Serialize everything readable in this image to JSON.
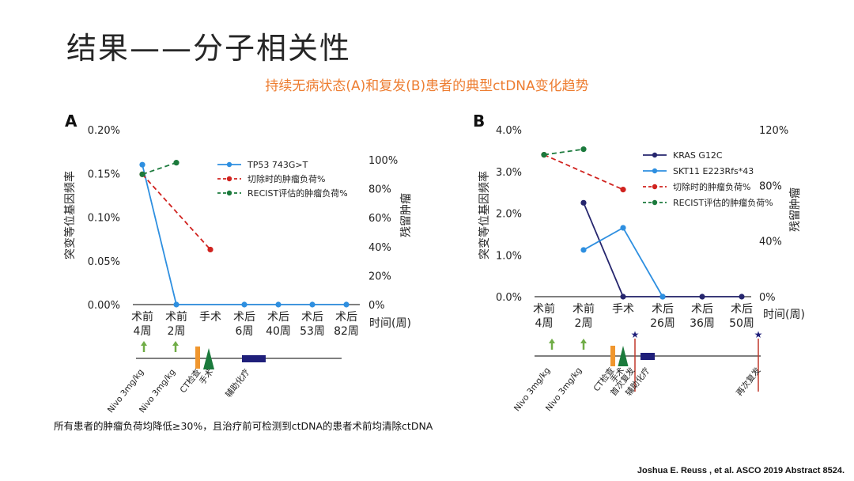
{
  "slide": {
    "title": "结果——分子相关性",
    "subtitle": "持续无病状态(A)和复发(B)患者的典型ctDNA变化趋势",
    "footnote": "所有患者的肿瘤负荷均降低≥30%，且治疗前可检测到ctDNA的患者术前均清除ctDNA",
    "citation": "Joshua E. Reuss , et al.  ASCO 2019 Abstract 8524."
  },
  "colors": {
    "tp53": "#2e8fe0",
    "kras": "#26266e",
    "stk11": "#2e8fe0",
    "resection": "#d0231f",
    "recist": "#1b7a3c",
    "nivo_arrow": "#70ad47",
    "ct_bar": "#f0962e",
    "surgery_tri": "#1b7a3c",
    "adjuvant_bar": "#1f1f7a",
    "relapse_line": "#c0392b",
    "star": "#1f1f7a"
  },
  "chart_data": [
    {
      "panel": "A",
      "type": "line",
      "ylabel": "突变等位基因频率",
      "y2label": "残留肿瘤",
      "xlabel": "时间(周)",
      "ylim": [
        0,
        0.2
      ],
      "yticks": [
        "0.00%",
        "0.05%",
        "0.10%",
        "0.15%",
        "0.20%"
      ],
      "y2lim": [
        0,
        100
      ],
      "y2ticks": [
        "0%",
        "20%",
        "40%",
        "60%",
        "80%",
        "100%"
      ],
      "categories": [
        [
          "术前",
          "4周"
        ],
        [
          "术前",
          "2周"
        ],
        [
          "手术",
          ""
        ],
        [
          "术后",
          "6周"
        ],
        [
          "术后",
          "40周"
        ],
        [
          "术后",
          "53周"
        ],
        [
          "术后",
          "82周"
        ]
      ],
      "series": [
        {
          "name": "TP53 743G>T",
          "axis": "left",
          "style": "solid",
          "colorKey": "tp53",
          "values": [
            0.16,
            0,
            null,
            0,
            0,
            0,
            0
          ]
        },
        {
          "name": "切除时的肿瘤负荷%",
          "axis": "right",
          "style": "dashed",
          "colorKey": "resection",
          "values": [
            90,
            null,
            38,
            null,
            null,
            null,
            null
          ]
        },
        {
          "name": "RECIST评估的肿瘤负荷%",
          "axis": "right",
          "style": "dashed",
          "colorKey": "recist",
          "values": [
            90,
            98,
            null,
            null,
            null,
            null,
            null
          ]
        }
      ],
      "timeline": {
        "labels": [
          "Nivo 3mg/kg",
          "Nivo 3mg/kg",
          "CT检查",
          "手术",
          "辅助化疗"
        ]
      }
    },
    {
      "panel": "B",
      "type": "line",
      "ylabel": "突变等位基因频率",
      "y2label": "残留肿瘤",
      "xlabel": "时间(周)",
      "ylim": [
        0,
        4.0
      ],
      "yticks": [
        "0.0%",
        "1.0%",
        "2.0%",
        "3.0%",
        "4.0%"
      ],
      "y2lim": [
        0,
        120
      ],
      "y2ticks": [
        "0%",
        "40%",
        "80%",
        "120%"
      ],
      "categories": [
        [
          "术前",
          "4周"
        ],
        [
          "术前",
          "2周"
        ],
        [
          "手术",
          ""
        ],
        [
          "术后",
          "26周"
        ],
        [
          "术后",
          "36周"
        ],
        [
          "术后",
          "50周"
        ]
      ],
      "series": [
        {
          "name": "KRAS G12C",
          "axis": "left",
          "style": "solid",
          "colorKey": "kras",
          "values": [
            null,
            2.25,
            0,
            0,
            0,
            0
          ]
        },
        {
          "name": "SKT11 E223Rfs*43",
          "axis": "left",
          "style": "solid",
          "colorKey": "stk11",
          "values": [
            null,
            1.12,
            1.65,
            0,
            null,
            null
          ]
        },
        {
          "name": "切除时的肿瘤负荷%",
          "axis": "right",
          "style": "dashed",
          "colorKey": "resection",
          "values": [
            102,
            null,
            77,
            null,
            null,
            null
          ]
        },
        {
          "name": "RECIST评估的肿瘤负荷%",
          "axis": "right",
          "style": "dashed",
          "colorKey": "recist",
          "values": [
            102,
            106,
            null,
            null,
            null,
            null
          ]
        }
      ],
      "timeline": {
        "labels": [
          "Nivo 3mg/kg",
          "Nivo 3mg/kg",
          "CT检查",
          "手术",
          "首次复发",
          "辅助化疗",
          "再次复发"
        ]
      }
    }
  ]
}
